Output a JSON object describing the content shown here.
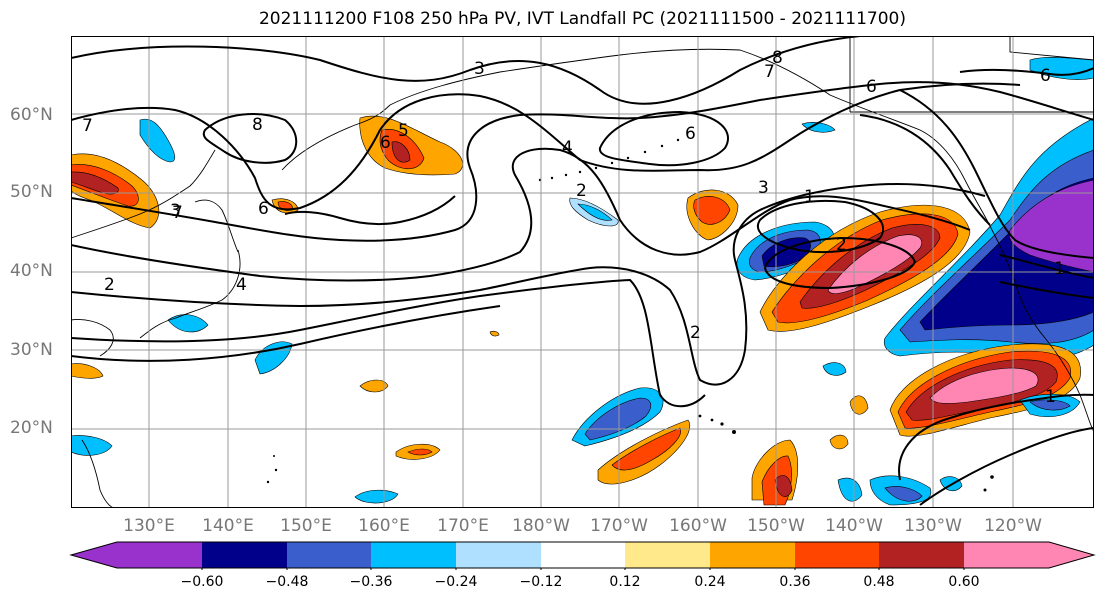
{
  "title": "2021111200 F108 250 hPa PV, IVT Landfall PC (2021111500 - 2021111700)",
  "lat_labels": [
    "60°N",
    "50°N",
    "40°N",
    "30°N",
    "20°N"
  ],
  "lon_labels": [
    "130°E",
    "140°E",
    "150°E",
    "160°E",
    "170°E",
    "180°W",
    "170°W",
    "160°W",
    "150°W",
    "140°W",
    "130°W",
    "120°W"
  ],
  "contour_labels": [
    "3",
    "8",
    "7",
    "6",
    "7",
    "8",
    "6",
    "5",
    "6",
    "4",
    "6",
    "2",
    "3",
    "1",
    "2",
    "3",
    "4",
    "1",
    "2",
    "2",
    "1",
    "7",
    "6"
  ],
  "colorbar": {
    "ticks": [
      "−0.60",
      "−0.48",
      "−0.36",
      "−0.24",
      "−0.12",
      "0.12",
      "0.24",
      "0.36",
      "0.48",
      "0.60"
    ],
    "colors": [
      "#9932cc",
      "#00008b",
      "#3a5fcd",
      "#00bfff",
      "#b0e0ff",
      "#ffffff",
      "#ffe98a",
      "#ffa500",
      "#ff4500",
      "#b22222",
      "#ff85b2"
    ]
  }
}
